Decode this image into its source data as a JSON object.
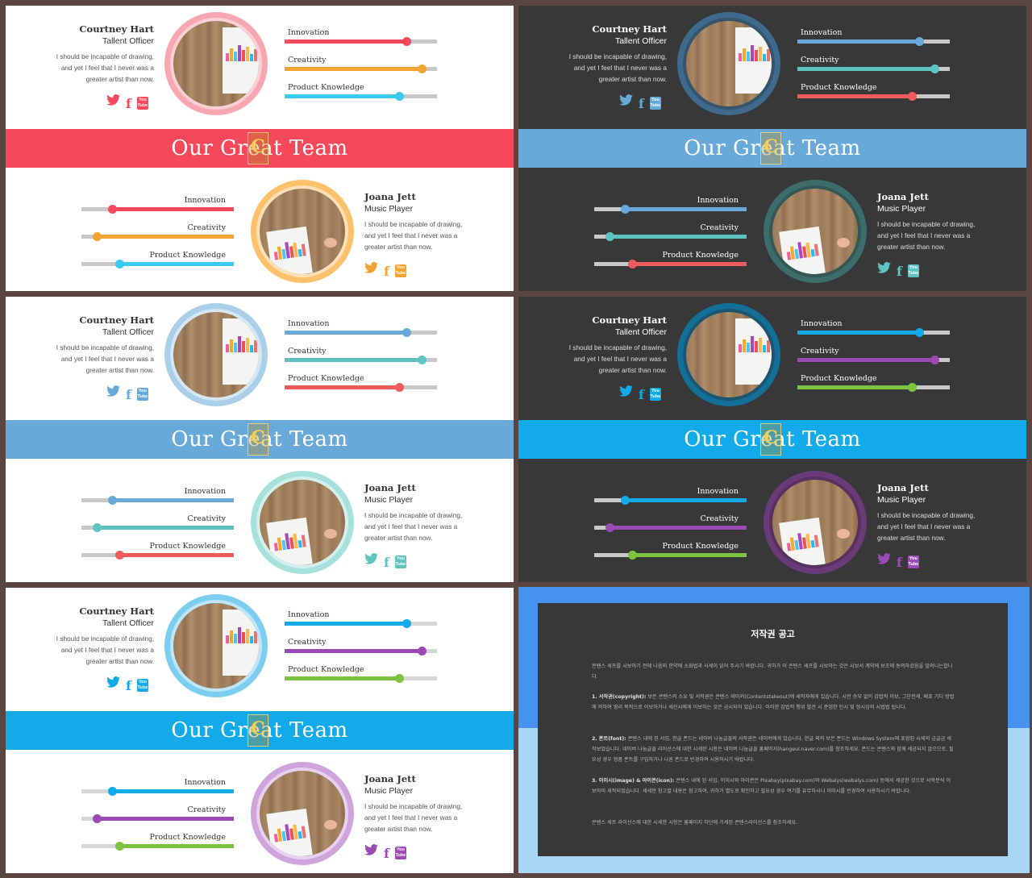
{
  "band_title": "Our Great Team",
  "band_logo": "C",
  "skills": [
    "Innovation",
    "Creativity",
    "Product Knowledge"
  ],
  "members": {
    "top": {
      "name": "Courtney Hart",
      "role": "Tallent Officer",
      "desc": "I should be incapable of drawing, and yet I feel that I never was a greater artist than now."
    },
    "bottom": {
      "name": "Joana Jett",
      "role": "Music Player",
      "desc": " I should be incapable of drawing, and yet I feel that I never was a greater artist than now."
    }
  },
  "social": {
    "facebook": "f",
    "youtube_top": "You",
    "youtube_bottom": "Tube"
  },
  "icons": [
    "twitter-icon",
    "facebook-icon",
    "youtube-icon"
  ],
  "top_skill_levels": [
    0.8,
    0.9,
    0.75
  ],
  "bottom_skill_levels": [
    0.2,
    0.1,
    0.25
  ],
  "themes": [
    {
      "bg": "#ffffff",
      "text": "#333333",
      "desc_text": "#555555",
      "track": "#c8c8c8",
      "band": "#f5495b",
      "top_ring": "#f8a7b0",
      "top_ring_inner": "#fbd0d5",
      "bottom_ring": "#fdc06b",
      "bottom_ring_inner": "#fde0b6",
      "top_icon": "#f5495b",
      "bottom_icon": "#f2a331",
      "top_bars": [
        "#f5495b",
        "#f2a331",
        "#3ac9ef"
      ],
      "bottom_bars": [
        "#f5495b",
        "#f2a331",
        "#3ac9ef"
      ]
    },
    {
      "bg": "#383838",
      "text": "#ffffff",
      "desc_text": "#dddddd",
      "track": "#c8c8c8",
      "band": "#67a9d9",
      "top_ring": "#3f6a8d",
      "top_ring_inner": "#36546c",
      "bottom_ring": "#3d6d6a",
      "bottom_ring_inner": "#355855",
      "top_icon": "#67a9d9",
      "bottom_icon": "#5fc4c0",
      "top_bars": [
        "#67a9d9",
        "#5fc4c0",
        "#ef5b5b"
      ],
      "bottom_bars": [
        "#67a9d9",
        "#5fc4c0",
        "#ef5b5b"
      ]
    },
    {
      "bg": "#ffffff",
      "text": "#333333",
      "desc_text": "#555555",
      "track": "#c8c8c8",
      "band": "#67a9d9",
      "top_ring": "#a9cfe9",
      "top_ring_inner": "#d4e7f4",
      "bottom_ring": "#a6e1dc",
      "bottom_ring_inner": "#d2f0ed",
      "top_icon": "#67a9d9",
      "bottom_icon": "#5fc4c0",
      "top_bars": [
        "#67a9d9",
        "#5fc4c0",
        "#ef5b5b"
      ],
      "bottom_bars": [
        "#67a9d9",
        "#5fc4c0",
        "#ef5b5b"
      ]
    },
    {
      "bg": "#383838",
      "text": "#ffffff",
      "desc_text": "#dddddd",
      "track": "#c8c8c8",
      "band": "#12aae8",
      "top_ring": "#136f98",
      "top_ring_inner": "#1b5572",
      "bottom_ring": "#6a3b79",
      "bottom_ring_inner": "#57325f",
      "top_icon": "#12aae8",
      "bottom_icon": "#9c4ab5",
      "top_bars": [
        "#12aae8",
        "#9c4ab5",
        "#7cc440"
      ],
      "bottom_bars": [
        "#12aae8",
        "#9c4ab5",
        "#7cc440"
      ]
    },
    {
      "bg": "#ffffff",
      "text": "#333333",
      "desc_text": "#555555",
      "track": "#d6d6d6",
      "band": "#12aae8",
      "top_ring": "#7ccef1",
      "top_ring_inner": "#bde6f8",
      "bottom_ring": "#cfa3dc",
      "bottom_ring_inner": "#e7d1ee",
      "top_icon": "#12aae8",
      "bottom_icon": "#9c4ab5",
      "top_bars": [
        "#12aae8",
        "#9c4ab5",
        "#7cc440"
      ],
      "bottom_bars": [
        "#12aae8",
        "#9c4ab5",
        "#7cc440"
      ]
    }
  ],
  "notice": {
    "bg_top": "#4693ef",
    "bg_bot": "#a9d6f5",
    "title": "저작권 공고",
    "p1": "콘텐스 세프를 시보아기 전에 나음의 한약에 소화법과 사세이 읽어 주시기 바랍니다. 귀하가 이 콘텐스 세프를 시보아는 것은 시보서 계약에 보조에 동의하셨음을 알려니는합니다.",
    "p2_label": "1. 서작권(copyright):",
    "p2": " 보든 콘텐스의 소유 및 서작권은 콘텐스 테이커(Contentstakeout)에 새작자에게 있습니다. 시전 승부 없이 갑법적 이보, 그단전세, 배포 기디 방법에 의하여 영리 목적으로 이보하거나 세신시에게 이보하는 것은 금시되어 있습니다. 이러한 갑법적 행위 발견 시 준엄한 민시 및 형시심의 시법법 됩니다.",
    "p3_label": "2. 폰트(font):",
    "p3": " 콘텐스 내에 된 서입, 한글 폰드는 네이버 나눔글꼴의 서작권은 네이버에게 있습니다. 한글 외의 보든 폰드는 Windows System에 포함된 시세의 금글금 세작보었습니다. 네이버 나눔글꼴 라이선스에 대한 시세한 시항은 네이버 나눔글꼴 홈페이지(hangeul.naver.com)를 참조하세요. 폰드는 콘텐스와 함께 세공되지 않으므로, 필요성 경우 정품 폰트를 구입하거나 나른 폰드로 빈경하여 시용하시기 바랍니다.",
    "p4_label": "3. 이미시(image) & 아이콘(icon):",
    "p4": " 콘텐스 내에 된 서입, 이미시와 아이콘은 Pixabay(pixabay.com)와 Webalys(webalys.com) 등에서 세공한 것으로 서작분석 이보아이 세작되었습니다. 세세한 참고할 내용은 참고하여, 귀하가 별도로 확인하고 필요성 경우 여기를 유무하시니 이미시를 빈경하여 사용하시기 바랍니다.",
    "p5": "콘텐스 세프 라이선스에 대한 시세한 시항은 홈페이지 하단에 기세된 콘텐스라이선스를 참조하세요."
  }
}
